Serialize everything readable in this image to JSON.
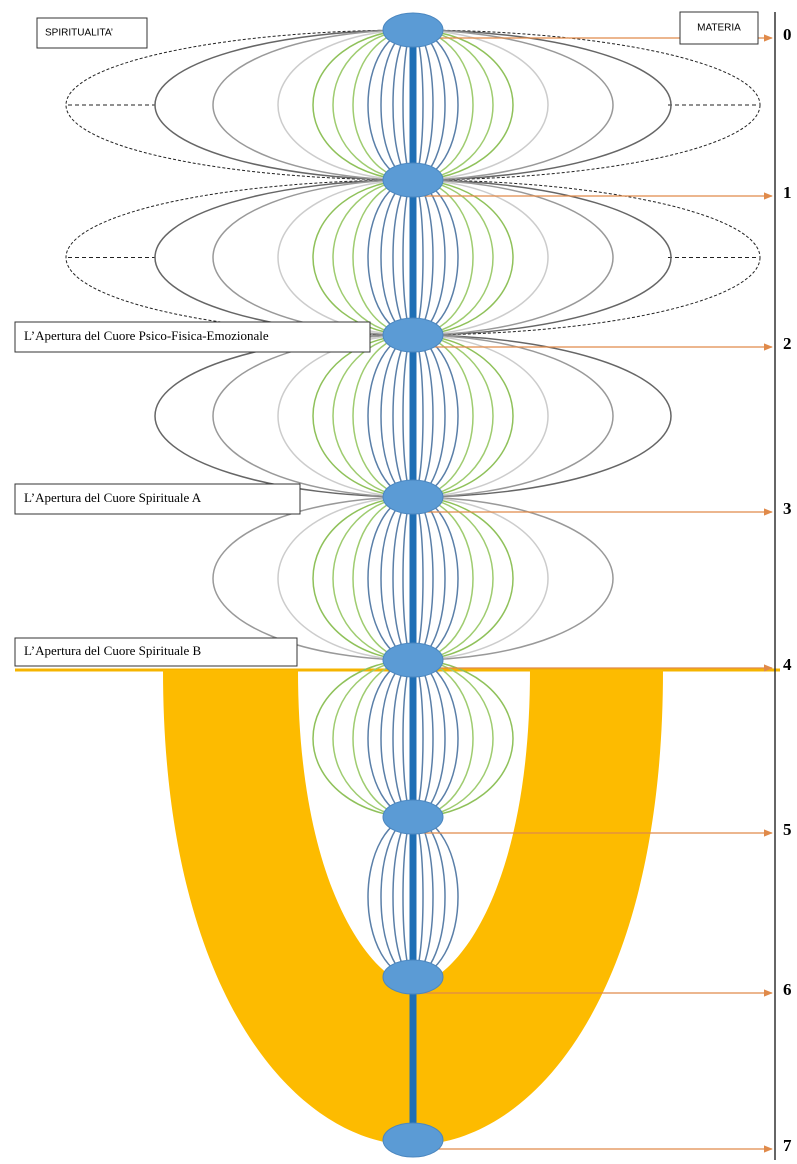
{
  "header": {
    "left": "SPIRITUALITA’",
    "right": "MATERIA"
  },
  "labels": [
    "L’Apertura del Cuore Psico-Fisica-Emozionale",
    "L’Apertura del Cuore Spirituale A",
    "L’Apertura del Cuore Spirituale B"
  ],
  "levels": [
    "0",
    "1",
    "2",
    "3",
    "4",
    "5",
    "6",
    "7"
  ]
}
